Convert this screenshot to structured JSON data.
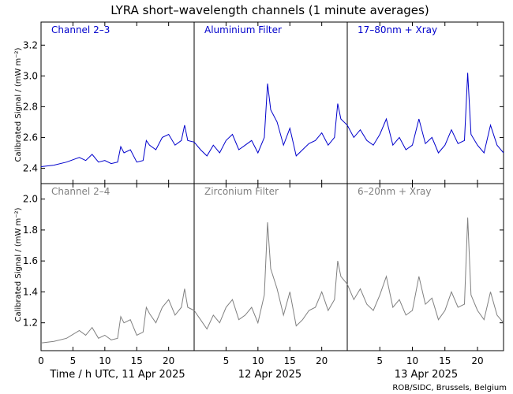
{
  "title": "LYRA short–wavelength channels (1 minute averages)",
  "credit": "ROB/SIDC, Brussels, Belgium",
  "x_labels": [
    "Time / h UTC, 11 Apr 2025",
    "12 Apr 2025",
    "13 Apr 2025"
  ],
  "colors": {
    "top": "#0000cc",
    "bottom": "#808080"
  },
  "chart_data": [
    {
      "type": "line",
      "row": "top",
      "ylabel": "Calibrated Signal / (mW m⁻²)",
      "ylim": [
        2.3,
        3.35
      ],
      "yticks": [
        "2.4",
        "2.6",
        "2.8",
        "3.0",
        "3.2"
      ],
      "ytick_values": [
        2.4,
        2.6,
        2.8,
        3.0,
        3.2
      ],
      "xlim": [
        0,
        72
      ],
      "xtick_values": [
        0,
        5,
        10,
        15,
        20,
        24,
        29,
        34,
        39,
        44,
        48,
        53,
        58,
        63,
        68
      ],
      "xtick_labels": [
        "0",
        "5",
        "10",
        "15",
        "20",
        "",
        "5",
        "10",
        "15",
        "20",
        "",
        "5",
        "10",
        "15",
        "20"
      ],
      "series": [
        {
          "name": "Channel 2–3",
          "x": [
            0,
            2,
            4,
            6,
            7,
            8,
            9,
            10,
            11,
            12,
            12.5,
            13,
            14,
            15,
            16,
            16.5,
            17,
            18,
            19,
            20,
            21,
            22,
            22.5,
            23,
            24
          ],
          "values": [
            2.41,
            2.42,
            2.44,
            2.47,
            2.45,
            2.49,
            2.44,
            2.45,
            2.43,
            2.44,
            2.54,
            2.5,
            2.52,
            2.44,
            2.45,
            2.58,
            2.55,
            2.52,
            2.6,
            2.62,
            2.55,
            2.58,
            2.68,
            2.58,
            2.57
          ]
        },
        {
          "name": "Aluminium Filter",
          "x": [
            24,
            25,
            26,
            27,
            28,
            29,
            30,
            31,
            32,
            33,
            34,
            35,
            35.5,
            36,
            37,
            38,
            39,
            40,
            41,
            42,
            43,
            44,
            45,
            46,
            46.5,
            47,
            48
          ],
          "values": [
            2.57,
            2.52,
            2.48,
            2.55,
            2.5,
            2.58,
            2.62,
            2.52,
            2.55,
            2.58,
            2.5,
            2.6,
            2.95,
            2.78,
            2.7,
            2.55,
            2.66,
            2.48,
            2.52,
            2.56,
            2.58,
            2.63,
            2.55,
            2.6,
            2.82,
            2.72,
            2.68
          ]
        },
        {
          "name": "17–80nm + Xray",
          "x": [
            48,
            49,
            50,
            51,
            52,
            53,
            54,
            55,
            56,
            57,
            58,
            59,
            60,
            61,
            62,
            63,
            64,
            65,
            66,
            66.5,
            67,
            68,
            69,
            70,
            71,
            72
          ],
          "values": [
            2.68,
            2.6,
            2.65,
            2.58,
            2.55,
            2.62,
            2.72,
            2.55,
            2.6,
            2.52,
            2.55,
            2.72,
            2.56,
            2.6,
            2.5,
            2.55,
            2.65,
            2.56,
            2.58,
            3.02,
            2.62,
            2.55,
            2.5,
            2.68,
            2.55,
            2.5
          ]
        }
      ]
    },
    {
      "type": "line",
      "row": "bottom",
      "ylabel": "Calibrated Signal / (mW m⁻²)",
      "ylim": [
        1.02,
        2.1
      ],
      "yticks": [
        "1.2",
        "1.4",
        "1.6",
        "1.8",
        "2.0"
      ],
      "ytick_values": [
        1.2,
        1.4,
        1.6,
        1.8,
        2.0
      ],
      "xlim": [
        0,
        72
      ],
      "xtick_values": [
        0,
        5,
        10,
        15,
        20,
        24,
        29,
        34,
        39,
        44,
        48,
        53,
        58,
        63,
        68
      ],
      "xtick_labels": [
        "0",
        "5",
        "10",
        "15",
        "20",
        "",
        "5",
        "10",
        "15",
        "20",
        "",
        "5",
        "10",
        "15",
        "20"
      ],
      "series": [
        {
          "name": "Channel 2–4",
          "x": [
            0,
            2,
            4,
            6,
            7,
            8,
            9,
            10,
            11,
            12,
            12.5,
            13,
            14,
            15,
            16,
            16.5,
            17,
            18,
            19,
            20,
            21,
            22,
            22.5,
            23,
            24
          ],
          "values": [
            1.07,
            1.08,
            1.1,
            1.15,
            1.12,
            1.17,
            1.1,
            1.12,
            1.09,
            1.1,
            1.24,
            1.2,
            1.22,
            1.12,
            1.14,
            1.3,
            1.26,
            1.2,
            1.3,
            1.35,
            1.25,
            1.3,
            1.42,
            1.3,
            1.28
          ]
        },
        {
          "name": "Zirconium Filter",
          "x": [
            24,
            25,
            26,
            27,
            28,
            29,
            30,
            31,
            32,
            33,
            34,
            35,
            35.5,
            36,
            37,
            38,
            39,
            40,
            41,
            42,
            43,
            44,
            45,
            46,
            46.5,
            47,
            48
          ],
          "values": [
            1.28,
            1.22,
            1.16,
            1.25,
            1.2,
            1.3,
            1.35,
            1.22,
            1.25,
            1.3,
            1.2,
            1.38,
            1.85,
            1.55,
            1.42,
            1.25,
            1.4,
            1.18,
            1.22,
            1.28,
            1.3,
            1.4,
            1.28,
            1.35,
            1.6,
            1.5,
            1.45
          ]
        },
        {
          "name": "6–20nm + Xray",
          "x": [
            48,
            49,
            50,
            51,
            52,
            53,
            54,
            55,
            56,
            57,
            58,
            59,
            60,
            61,
            62,
            63,
            64,
            65,
            66,
            66.5,
            67,
            68,
            69,
            70,
            71,
            72
          ],
          "values": [
            1.45,
            1.35,
            1.42,
            1.32,
            1.28,
            1.38,
            1.5,
            1.3,
            1.35,
            1.25,
            1.28,
            1.5,
            1.32,
            1.36,
            1.22,
            1.28,
            1.4,
            1.3,
            1.32,
            1.88,
            1.38,
            1.28,
            1.22,
            1.4,
            1.25,
            1.2
          ]
        }
      ]
    }
  ]
}
